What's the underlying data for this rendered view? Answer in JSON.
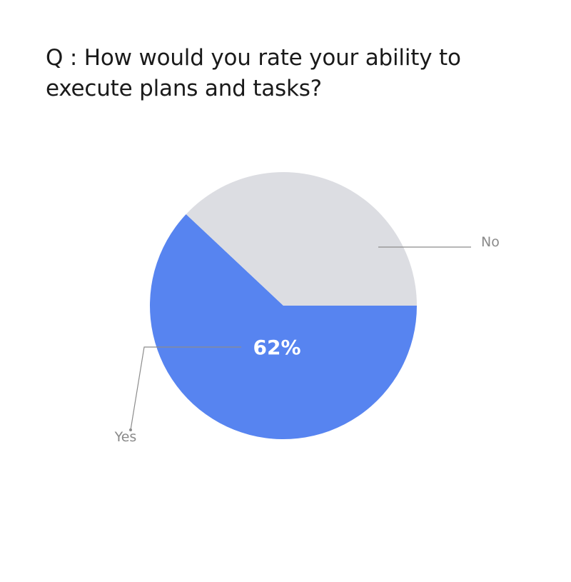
{
  "title": "Q : How would you rate your ability to execute plans and tasks?",
  "chart_data": {
    "type": "pie",
    "title": "Q : How would you rate your ability to execute plans and tasks?",
    "categories": [
      "Yes",
      "No"
    ],
    "values": [
      62,
      38
    ],
    "units": "%",
    "data_labels": [
      "62%",
      ""
    ],
    "colors": [
      "#5784f0",
      "#dcdde2"
    ],
    "legend": "none",
    "label_placement": "leader-lines"
  }
}
